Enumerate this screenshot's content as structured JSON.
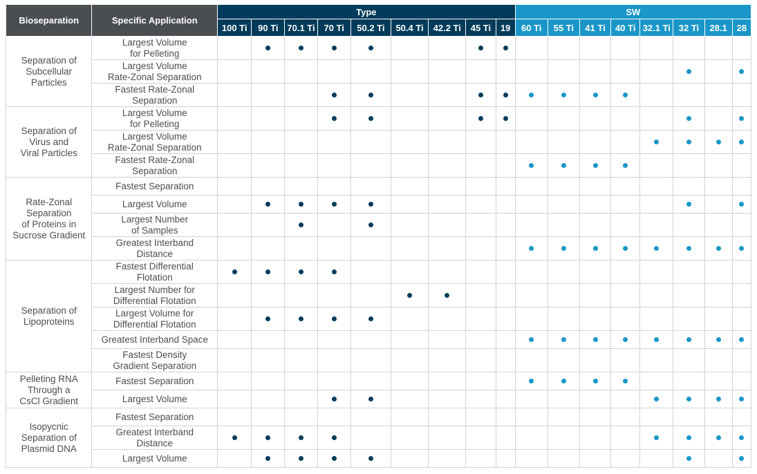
{
  "colors": {
    "type_header": "#003b59",
    "sw_header": "#1a97c8",
    "label_header": "#4a4e52",
    "type_dot": "#003b59",
    "sw_dot": "#1a97c8"
  },
  "headers": {
    "bioseparation": "Bioseparation",
    "specific_application": "Specific Application",
    "type_group": "Type",
    "sw_group": "SW",
    "type_rotors": [
      "100 Ti",
      "90 Ti",
      "70.1 Ti",
      "70 Ti",
      "50.2 Ti",
      "50.4 Ti",
      "42.2 Ti",
      "45 Ti",
      "19"
    ],
    "sw_rotors": [
      "60 Ti",
      "55 Ti",
      "41 Ti",
      "40 Ti",
      "32.1 Ti",
      "32 Ti",
      "28.1",
      "28"
    ]
  },
  "groups": [
    {
      "label": "Separation of\nSubcellular\nParticles",
      "rows": [
        {
          "app": "Largest Volume\nfor Pelleting",
          "type": [
            0,
            1,
            1,
            1,
            1,
            0,
            0,
            1,
            1
          ],
          "sw": [
            0,
            0,
            0,
            0,
            0,
            0,
            0,
            0
          ]
        },
        {
          "app": "Largest Volume\nRate-Zonal Separation",
          "type": [
            0,
            0,
            0,
            0,
            0,
            0,
            0,
            0,
            0
          ],
          "sw": [
            0,
            0,
            0,
            0,
            0,
            1,
            0,
            1
          ]
        },
        {
          "app": "Fastest Rate-Zonal\nSeparation",
          "type": [
            0,
            0,
            0,
            1,
            1,
            0,
            0,
            1,
            1
          ],
          "sw": [
            1,
            1,
            1,
            1,
            0,
            0,
            0,
            0
          ]
        }
      ]
    },
    {
      "label": "Separation of\nVirus and\nViral Particles",
      "rows": [
        {
          "app": "Largest Volume\nfor Pelleting",
          "type": [
            0,
            0,
            0,
            1,
            1,
            0,
            0,
            1,
            1
          ],
          "sw": [
            0,
            0,
            0,
            0,
            0,
            1,
            0,
            1
          ]
        },
        {
          "app": "Largest Volume\nRate-Zonal Separation",
          "type": [
            0,
            0,
            0,
            0,
            0,
            0,
            0,
            0,
            0
          ],
          "sw": [
            0,
            0,
            0,
            0,
            1,
            1,
            1,
            1
          ]
        },
        {
          "app": "Fastest Rate-Zonal\nSeparation",
          "type": [
            0,
            0,
            0,
            0,
            0,
            0,
            0,
            0,
            0
          ],
          "sw": [
            1,
            1,
            1,
            1,
            0,
            0,
            0,
            0
          ]
        }
      ]
    },
    {
      "label": "Rate-Zonal\nSeparation\nof Proteins in\nSucrose Gradient",
      "rows": [
        {
          "app": "Fastest Separation",
          "type": [
            0,
            0,
            0,
            0,
            0,
            0,
            0,
            0,
            0
          ],
          "sw": [
            0,
            0,
            0,
            0,
            0,
            0,
            0,
            0
          ]
        },
        {
          "app": "Largest Volume",
          "type": [
            0,
            1,
            1,
            1,
            1,
            0,
            0,
            0,
            0
          ],
          "sw": [
            0,
            0,
            0,
            0,
            0,
            1,
            0,
            1
          ]
        },
        {
          "app": "Largest Number\nof Samples",
          "type": [
            0,
            0,
            1,
            0,
            1,
            0,
            0,
            0,
            0
          ],
          "sw": [
            0,
            0,
            0,
            0,
            0,
            0,
            0,
            0
          ]
        },
        {
          "app": "Greatest Interband\nDistance",
          "type": [
            0,
            0,
            0,
            0,
            0,
            0,
            0,
            0,
            0
          ],
          "sw": [
            1,
            1,
            1,
            1,
            1,
            1,
            1,
            1
          ]
        }
      ]
    },
    {
      "label": "Separation of\nLipoproteins",
      "rows": [
        {
          "app": "Fastest Differential\nFlotation",
          "type": [
            1,
            1,
            1,
            1,
            0,
            0,
            0,
            0,
            0
          ],
          "sw": [
            0,
            0,
            0,
            0,
            0,
            0,
            0,
            0
          ]
        },
        {
          "app": "Largest Number for\nDifferential Flotation",
          "type": [
            0,
            0,
            0,
            0,
            0,
            1,
            1,
            0,
            0
          ],
          "sw": [
            0,
            0,
            0,
            0,
            0,
            0,
            0,
            0
          ]
        },
        {
          "app": "Largest Volume for\nDifferential Flotation",
          "type": [
            0,
            1,
            1,
            1,
            1,
            0,
            0,
            0,
            0
          ],
          "sw": [
            0,
            0,
            0,
            0,
            0,
            0,
            0,
            0
          ]
        },
        {
          "app": "Greatest Interband Space",
          "type": [
            0,
            0,
            0,
            0,
            0,
            0,
            0,
            0,
            0
          ],
          "sw": [
            1,
            1,
            1,
            1,
            1,
            1,
            1,
            1
          ]
        },
        {
          "app": "Fastest Density\nGradient Separation",
          "type": [
            0,
            0,
            0,
            0,
            0,
            0,
            0,
            0,
            0
          ],
          "sw": [
            0,
            0,
            0,
            0,
            0,
            0,
            0,
            0
          ]
        }
      ]
    },
    {
      "label": "Pelleting RNA\nThrough a\nCsCl Gradient",
      "rows": [
        {
          "app": "Fastest Separation",
          "type": [
            0,
            0,
            0,
            0,
            0,
            0,
            0,
            0,
            0
          ],
          "sw": [
            1,
            1,
            1,
            1,
            0,
            0,
            0,
            0
          ]
        },
        {
          "app": "Largest Volume",
          "type": [
            0,
            0,
            0,
            1,
            1,
            0,
            0,
            0,
            0
          ],
          "sw": [
            0,
            0,
            0,
            0,
            1,
            1,
            1,
            1
          ]
        }
      ]
    },
    {
      "label": "Isopycnic\nSeparation of\nPlasmid DNA",
      "rows": [
        {
          "app": "Fastest Separation",
          "type": [
            0,
            0,
            0,
            0,
            0,
            0,
            0,
            0,
            0
          ],
          "sw": [
            0,
            0,
            0,
            0,
            0,
            0,
            0,
            0
          ]
        },
        {
          "app": "Greatest Interband\nDistance",
          "type": [
            1,
            1,
            1,
            1,
            0,
            0,
            0,
            0,
            0
          ],
          "sw": [
            0,
            0,
            0,
            0,
            1,
            1,
            1,
            1
          ]
        },
        {
          "app": "Largest Volume",
          "type": [
            0,
            1,
            1,
            1,
            1,
            0,
            0,
            0,
            0
          ],
          "sw": [
            0,
            0,
            0,
            0,
            0,
            1,
            0,
            1
          ]
        }
      ]
    }
  ]
}
